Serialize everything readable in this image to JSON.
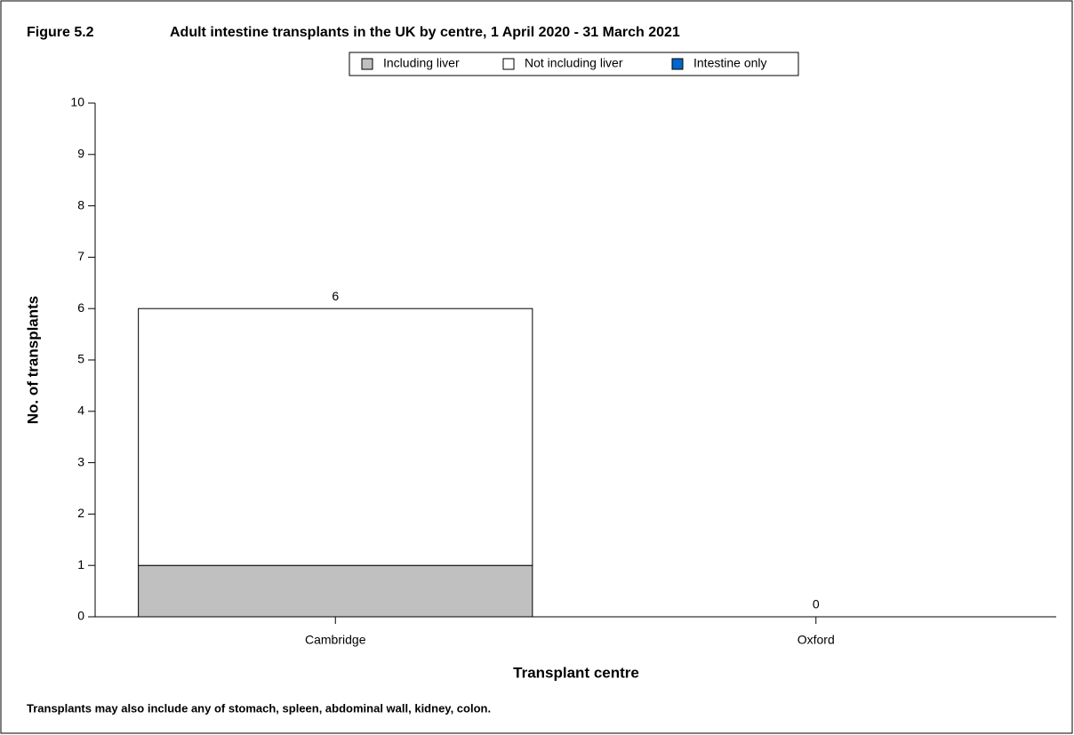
{
  "chart_data": {
    "type": "stacked_bar",
    "figure_label": "Figure 5.2",
    "title": "Adult intestine transplants in the UK by centre, 1 April 2020 - 31 March 2021",
    "x_label": "Transplant centre",
    "y_label": "No. of transplants",
    "footnote": "Transplants may also include any of stomach, spleen, abdominal wall, kidney, colon.",
    "categories": [
      "Cambridge",
      "Oxford"
    ],
    "series": [
      {
        "name": "Including liver",
        "color": "#c0c0c0",
        "values": [
          1,
          0
        ]
      },
      {
        "name": "Not including liver",
        "color": "#ffffff",
        "values": [
          5,
          0
        ]
      },
      {
        "name": "Intestine only",
        "color": "#0066cc",
        "values": [
          0,
          0
        ]
      }
    ],
    "total_labels": [
      6,
      0
    ],
    "ylim": [
      0,
      10
    ],
    "yticks": [
      0,
      1,
      2,
      3,
      4,
      5,
      6,
      7,
      8,
      9,
      10
    ],
    "legend": "top"
  }
}
